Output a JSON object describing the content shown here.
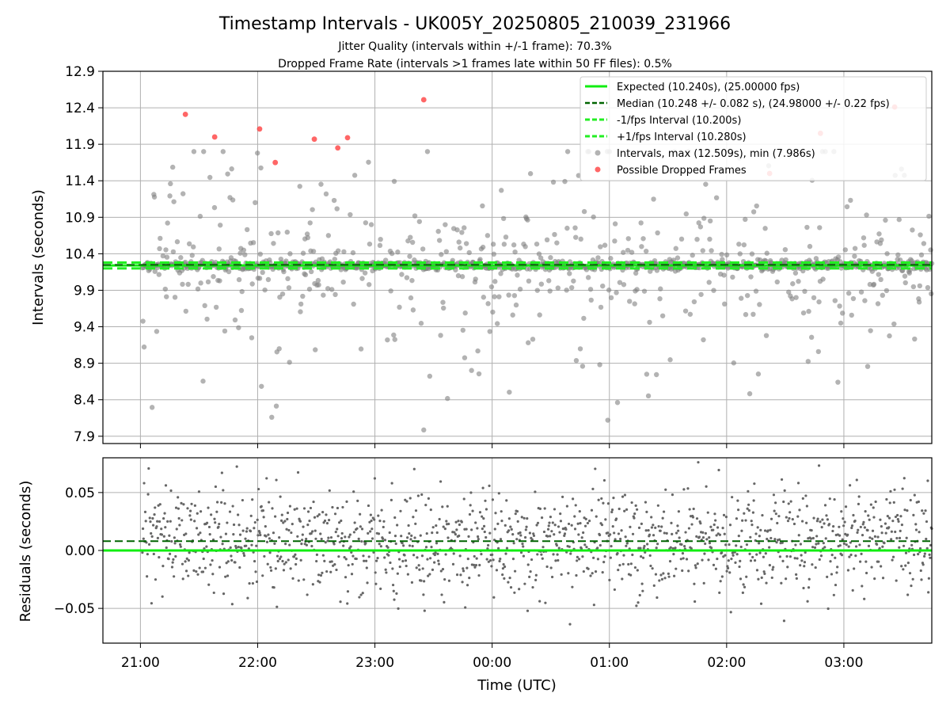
{
  "title": "Timestamp Intervals - UK005Y_20250805_210039_231966",
  "subtitle_1": "Jitter Quality (intervals within +/-1 frame): 70.3%",
  "subtitle_2": "Dropped Frame Rate (intervals >1 frames late within 50 FF files): 0.5%",
  "colors": {
    "expected": "#11ee11",
    "median": "#006400",
    "interval_bounds": "#22ee22",
    "points": "#808080",
    "dropped": "#ff3333",
    "grid": "#b0b0b0"
  },
  "chart_data": [
    {
      "type": "scatter",
      "ylabel": "Intervals (seconds)",
      "xlabel": "",
      "ylim": [
        7.8,
        12.9
      ],
      "xlim_hours": [
        20.68,
        27.75
      ],
      "x_tick_hours": [
        21,
        22,
        23,
        24,
        25,
        26,
        27
      ],
      "y_ticks": [
        "12.9",
        "12.4",
        "11.9",
        "11.4",
        "10.9",
        "10.4",
        "9.9",
        "9.4",
        "8.9",
        "8.4",
        "7.9"
      ],
      "grid": true,
      "legend_position": "upper right",
      "legend": [
        "Expected (10.240s), (25.00000 fps)",
        "Median (10.248 +/- 0.082 s), (24.98000 +/- 0.22 fps)",
        "-1/fps Interval (10.200s)",
        "+1/fps Interval (10.280s)",
        "Intervals, max (12.509s), min (7.986s)",
        "Possible Dropped Frames"
      ],
      "reference_lines": {
        "expected": 10.24,
        "median": 10.248,
        "minus_one_frame": 10.2,
        "plus_one_frame": 10.28
      },
      "dropped_frames": [
        {
          "t": "21:23",
          "y": 12.31
        },
        {
          "t": "21:38",
          "y": 12.0
        },
        {
          "t": "22:01",
          "y": 12.11
        },
        {
          "t": "22:09",
          "y": 11.65
        },
        {
          "t": "22:29",
          "y": 11.97
        },
        {
          "t": "22:41",
          "y": 11.85
        },
        {
          "t": "22:46",
          "y": 11.99
        },
        {
          "t": "23:25",
          "y": 12.51
        },
        {
          "t": "02:22",
          "y": 11.5
        },
        {
          "t": "02:48",
          "y": 12.05
        },
        {
          "t": "03:26",
          "y": 12.41
        }
      ],
      "series_note": "1380 intervals between 21:01 and 03:45, clustered at 10.24 s"
    },
    {
      "type": "scatter",
      "ylabel": "Residuals (seconds)",
      "xlabel": "Time (UTC)",
      "ylim": [
        -0.08,
        0.08
      ],
      "y_ticks": [
        "0.05",
        "0.00",
        "−0.05"
      ],
      "x_ticks": [
        "21:00",
        "22:00",
        "23:00",
        "00:00",
        "01:00",
        "02:00",
        "03:00"
      ],
      "grid": true,
      "reference_lines": {
        "zero": 0.0,
        "median_offset": 0.008
      }
    }
  ]
}
